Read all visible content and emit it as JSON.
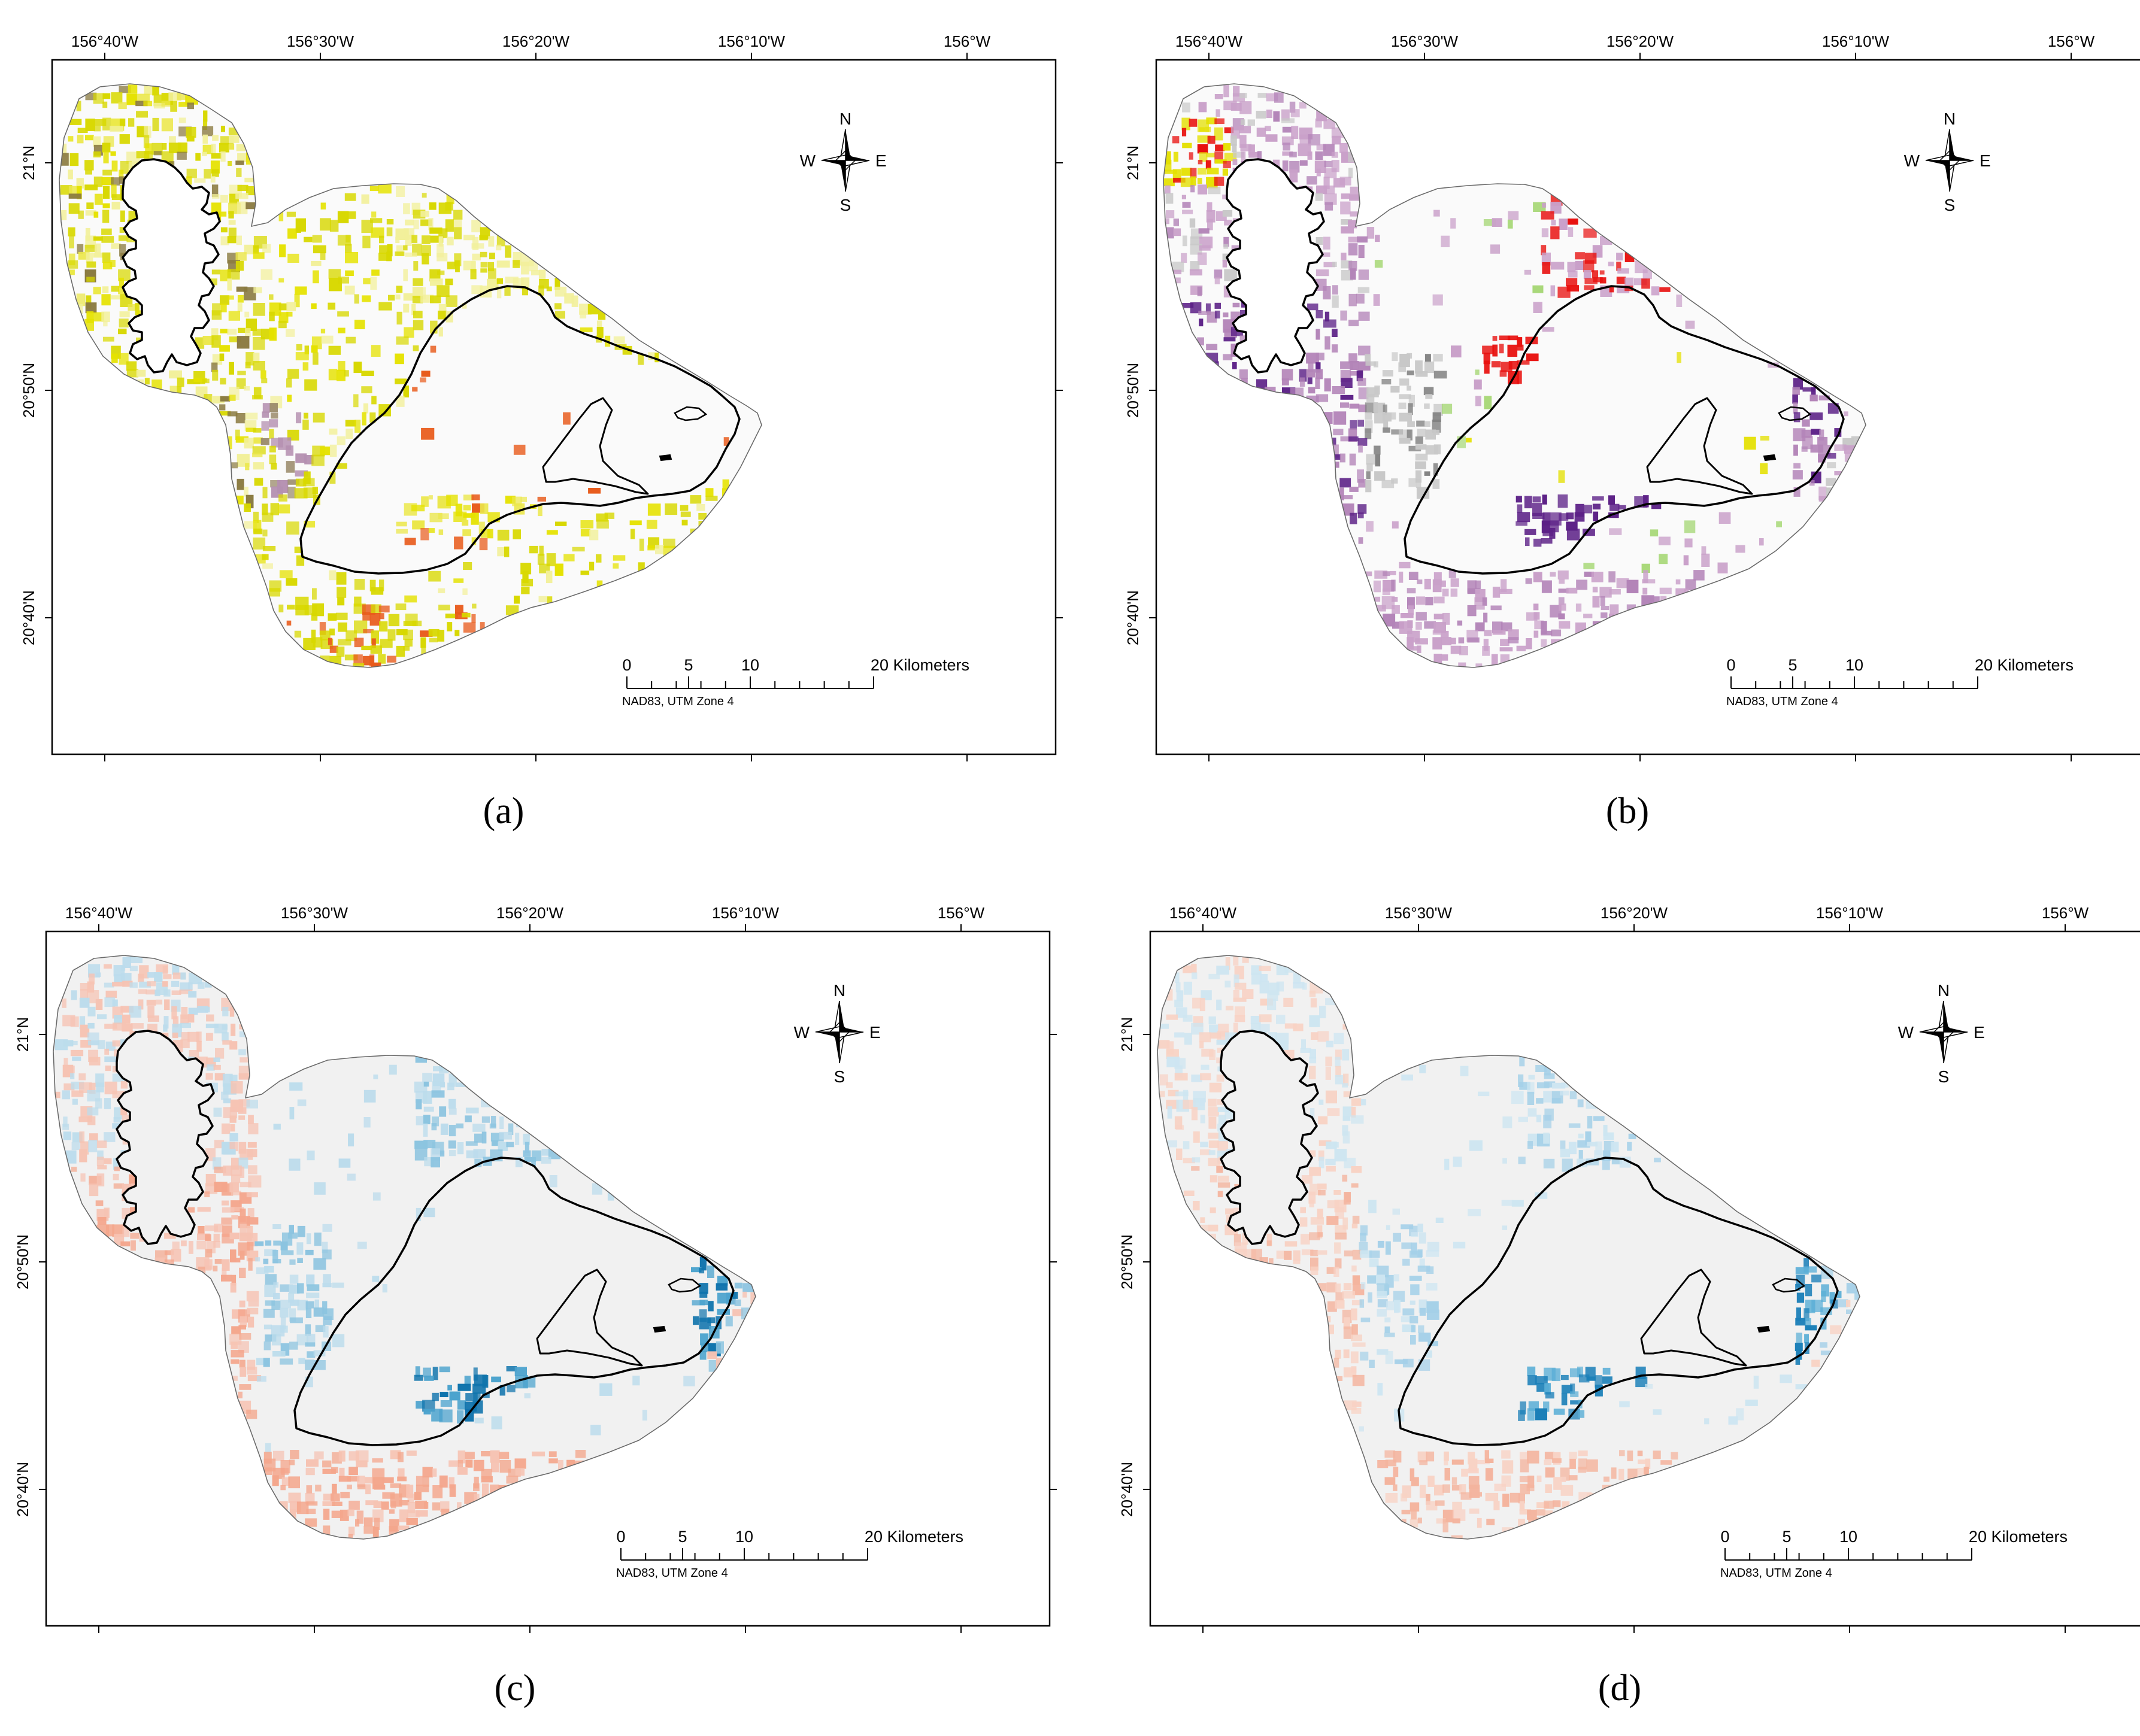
{
  "figure": {
    "panels": [
      {
        "id": "a",
        "caption_label": "(a)",
        "palette": [
          "#d8d800",
          "#e5e200",
          "#ebe74a",
          "#f2f09a",
          "#e85a1a",
          "#9a8a6a",
          "#b48fb0",
          "#8a7a40",
          "#8fc080"
        ],
        "fill_base": "#fafafa"
      },
      {
        "id": "b",
        "caption_label": "(b)",
        "palette": [
          "#c9a0c9",
          "#b384b8",
          "#5b1f86",
          "#c8c8c8",
          "#e8100e",
          "#e4e000",
          "#a8d878",
          "#808080"
        ],
        "fill_base": "#fafafa"
      },
      {
        "id": "c",
        "caption_label": "(c)",
        "palette": [
          "#f6c3b3",
          "#f4a68c",
          "#bcdcec",
          "#8cc4e0",
          "#4aa2cd",
          "#0f73ac"
        ],
        "fill_base": "#f1f1f1"
      },
      {
        "id": "d",
        "caption_label": "(d)",
        "palette": [
          "#f8d2c4",
          "#f4b49e",
          "#cde5f1",
          "#a4d0e8",
          "#5aaed6",
          "#1b7fb8"
        ],
        "fill_base": "#f1f1f1"
      }
    ],
    "longitude_labels": [
      "156°40'W",
      "156°30'W",
      "156°20'W",
      "156°10'W",
      "156°W"
    ],
    "latitude_labels": [
      "21°N",
      "20°50'N",
      "20°40'N"
    ],
    "compass": {
      "north": "N",
      "south": "S",
      "east": "E",
      "west": "W"
    },
    "scalebar": {
      "ticks": [
        "0",
        "5",
        "10"
      ],
      "end_label": "20 Kilometers",
      "projection": "NAD83, UTM Zone 4"
    },
    "colors": {
      "island_outline": "#6a6a6a",
      "contour": "#000000",
      "frame": "#000000"
    }
  }
}
